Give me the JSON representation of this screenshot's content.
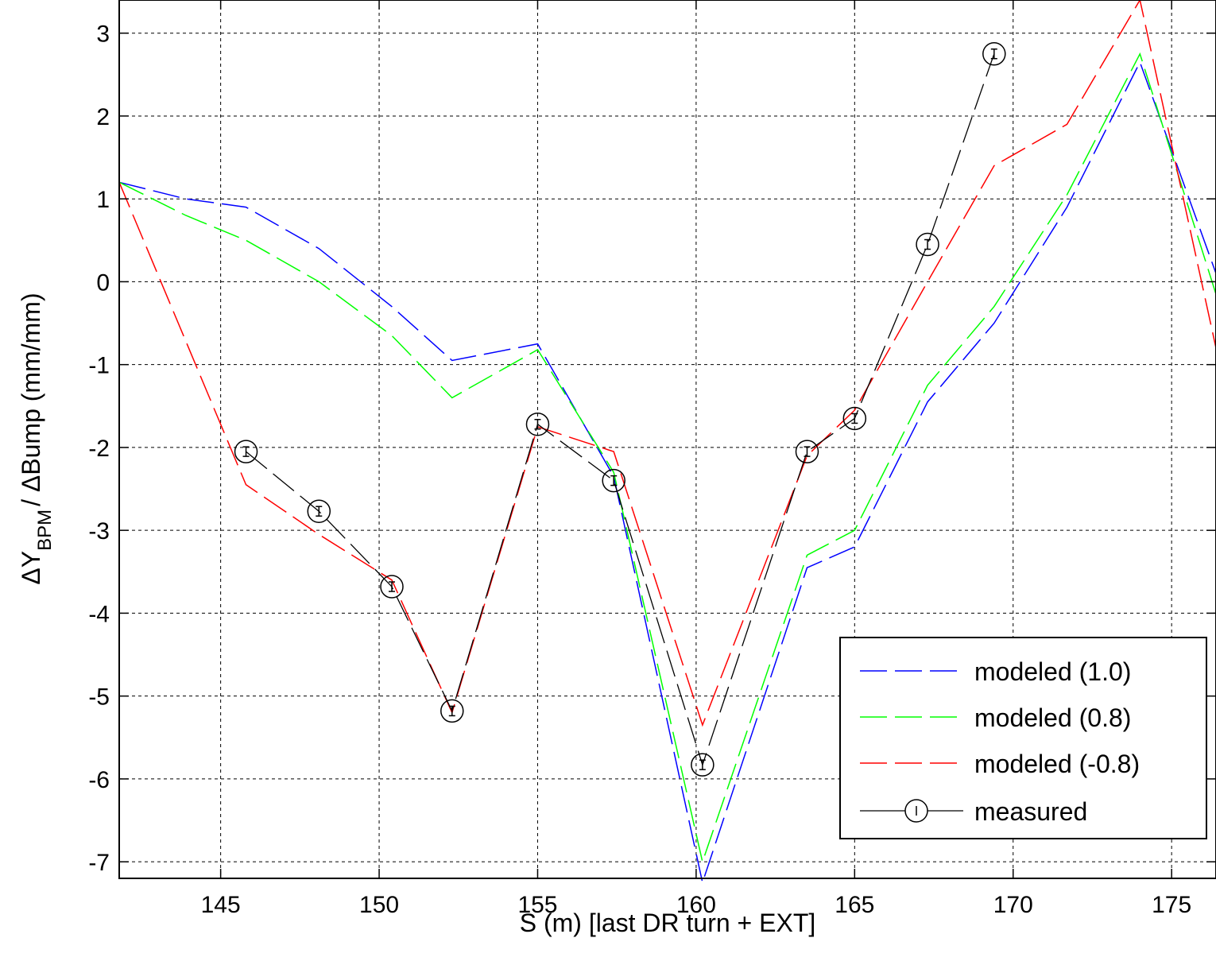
{
  "chart_data": {
    "type": "line",
    "xlabel": "S (m) [last DR turn + EXT]",
    "ylabel": {
      "prefix": "ΔY",
      "subscript": "BPM",
      "suffix": "/ ΔBump (mm/mm)"
    },
    "xlim": [
      141.8,
      176.4
    ],
    "ylim": [
      -7.2,
      3.4
    ],
    "xticks": [
      145,
      150,
      155,
      160,
      165,
      170,
      175
    ],
    "yticks": [
      3,
      2,
      1,
      0,
      -1,
      -2,
      -3,
      -4,
      -5,
      -6,
      -7
    ],
    "grid": true,
    "legend_position": "bottom-right",
    "series": [
      {
        "name": "modeled (1.0)",
        "color": "#0000ff",
        "style": "dashed",
        "x": [
          141.8,
          143.9,
          145.8,
          148.1,
          150.4,
          152.3,
          155.0,
          157.4,
          160.2,
          163.5,
          165.0,
          167.3,
          169.4,
          171.7,
          174.0,
          176.4
        ],
        "y": [
          1.2,
          1.0,
          0.9,
          0.4,
          -0.3,
          -0.95,
          -0.75,
          -2.35,
          -7.25,
          -3.45,
          -3.2,
          -1.45,
          -0.5,
          0.9,
          2.65,
          0.1
        ]
      },
      {
        "name": "modeled (0.8)",
        "color": "#00ff00",
        "style": "dashed",
        "x": [
          141.8,
          143.9,
          145.8,
          148.1,
          150.4,
          152.3,
          155.0,
          157.4,
          160.2,
          163.5,
          165.0,
          167.3,
          169.4,
          171.7,
          174.0,
          176.4
        ],
        "y": [
          1.2,
          0.8,
          0.5,
          0.0,
          -0.65,
          -1.4,
          -0.82,
          -2.3,
          -7.0,
          -3.3,
          -3.0,
          -1.25,
          -0.3,
          1.05,
          2.75,
          -0.15
        ]
      },
      {
        "name": "modeled (-0.8)",
        "color": "#ff0000",
        "style": "dashed",
        "x": [
          141.8,
          145.8,
          148.1,
          150.4,
          152.3,
          155.0,
          157.4,
          160.2,
          163.5,
          165.0,
          167.3,
          169.4,
          171.7,
          174.0,
          176.4
        ],
        "y": [
          1.2,
          -2.45,
          -3.05,
          -3.6,
          -5.2,
          -1.75,
          -2.05,
          -5.35,
          -2.1,
          -1.55,
          0.0,
          1.4,
          1.9,
          3.4,
          -0.8
        ]
      },
      {
        "name": "measured",
        "color": "#000000",
        "style": "dashed-markers",
        "marker": "circle",
        "x": [
          145.8,
          148.1,
          150.4,
          152.3,
          155.0,
          157.4,
          160.2,
          163.5,
          165.0,
          167.3,
          169.4
        ],
        "y": [
          -2.05,
          -2.77,
          -3.68,
          -5.18,
          -1.72,
          -2.4,
          -5.83,
          -2.05,
          -1.65,
          0.45,
          2.75
        ]
      }
    ]
  }
}
